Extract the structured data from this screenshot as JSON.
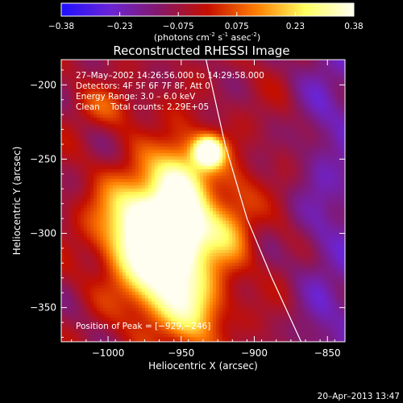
{
  "chart_data": {
    "type": "heatmap",
    "title": "Reconstructed RHESSI Image",
    "colorbar": {
      "ticks": [
        "-0.38",
        "-0.23",
        "-0.075",
        "0.075",
        "0.23",
        "0.38"
      ],
      "range": [
        -0.38,
        0.38
      ],
      "colors": [
        "#1e10ff",
        "#6b24d6",
        "#84186a",
        "#c40f00",
        "#ff7d00",
        "#ffff60",
        "#fffef0"
      ],
      "unit_prefix": "(photons cm",
      "unit_exp1": "-2",
      "unit_mid": " s",
      "unit_exp2": "-1",
      "unit_mid2": " asec",
      "unit_exp3": "-2",
      "unit_suffix": ")"
    },
    "xlabel": "Heliocentric X (arcsec)",
    "ylabel": "Heliocentric Y (arcsec)",
    "xlim": [
      -1032,
      -838
    ],
    "ylim": [
      -373,
      -183
    ],
    "xticks": [
      {
        "value": -1000,
        "label": "−1000"
      },
      {
        "value": -950,
        "label": "−950"
      },
      {
        "value": -900,
        "label": "−900"
      },
      {
        "value": -850,
        "label": "−850"
      }
    ],
    "yticks": [
      {
        "value": -200,
        "label": "−200"
      },
      {
        "value": -250,
        "label": "−250"
      },
      {
        "value": -300,
        "label": "−300"
      },
      {
        "value": -350,
        "label": "−350"
      }
    ],
    "info_lines": [
      "27–May–2002 14:26:56.000 to 14:29:58.000",
      "Detectors: 4F 5F 6F 7F 8F, Att 0",
      "Energy Range: 3.0 – 6.0 keV",
      "Clean    Total counts: 2.29E+05"
    ],
    "peak_label": "Position of Peak = [−929,−246]",
    "peak": [
      -929,
      -246
    ],
    "limb_curve": [
      [
        -933,
        -183
      ],
      [
        -920,
        -240
      ],
      [
        -905,
        -290
      ],
      [
        -888,
        -330
      ],
      [
        -868,
        -373
      ]
    ],
    "emission_blobs": [
      {
        "x": -931,
        "y": -245,
        "sx": 7,
        "sy": 7,
        "amp": 0.3
      },
      {
        "x": -950,
        "y": -262,
        "sx": 14,
        "sy": 20,
        "amp": 0.18
      },
      {
        "x": -975,
        "y": -292,
        "sx": 22,
        "sy": 22,
        "amp": 0.26
      },
      {
        "x": -945,
        "y": -300,
        "sx": 18,
        "sy": 14,
        "amp": 0.16
      },
      {
        "x": -962,
        "y": -330,
        "sx": 20,
        "sy": 22,
        "amp": 0.22
      },
      {
        "x": -940,
        "y": -355,
        "sx": 14,
        "sy": 18,
        "amp": 0.12
      },
      {
        "x": -915,
        "y": -290,
        "sx": 12,
        "sy": 28,
        "amp": 0.08
      },
      {
        "x": -1000,
        "y": -215,
        "sx": 18,
        "sy": 10,
        "amp": 0.06
      }
    ],
    "background_level": -0.07
  },
  "footer": {
    "timestamp": "20–Apr–2013 13:47"
  }
}
